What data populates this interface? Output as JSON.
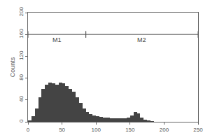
{
  "chart_data": {
    "type": "histogram",
    "y_label": "Counts",
    "bins": [
      0,
      5,
      10,
      15,
      20,
      25,
      30,
      35,
      40,
      45,
      50,
      55,
      60,
      65,
      70,
      75,
      80,
      85,
      90,
      95,
      100,
      105,
      110,
      115,
      120,
      125,
      130,
      135,
      140,
      145,
      150,
      155,
      160,
      165,
      170,
      175,
      180,
      185,
      190,
      195,
      200,
      205,
      210,
      215,
      220,
      225,
      230,
      235,
      240,
      245,
      250
    ],
    "counts": [
      3,
      10,
      25,
      45,
      60,
      68,
      72,
      70,
      68,
      72,
      70,
      65,
      60,
      55,
      45,
      35,
      25,
      18,
      14,
      12,
      10,
      9,
      8,
      8,
      7,
      7,
      6,
      6,
      6,
      8,
      12,
      18,
      16,
      8,
      4,
      2,
      1,
      0,
      0,
      0,
      0,
      0,
      0,
      0,
      0,
      0,
      0,
      0,
      0,
      0
    ],
    "color": "#444444",
    "gates": [
      {
        "label": "M1",
        "range": [
          0,
          85
        ],
        "y": 160
      },
      {
        "label": "M2",
        "range": [
          85,
          250
        ],
        "y": 160
      }
    ],
    "xlim": [
      0,
      250
    ],
    "xticks": [
      0,
      50,
      100,
      150,
      200,
      250
    ],
    "ylim": [
      0,
      200
    ],
    "yticks": [
      0,
      40,
      80,
      120,
      160,
      200
    ],
    "grid": false
  }
}
